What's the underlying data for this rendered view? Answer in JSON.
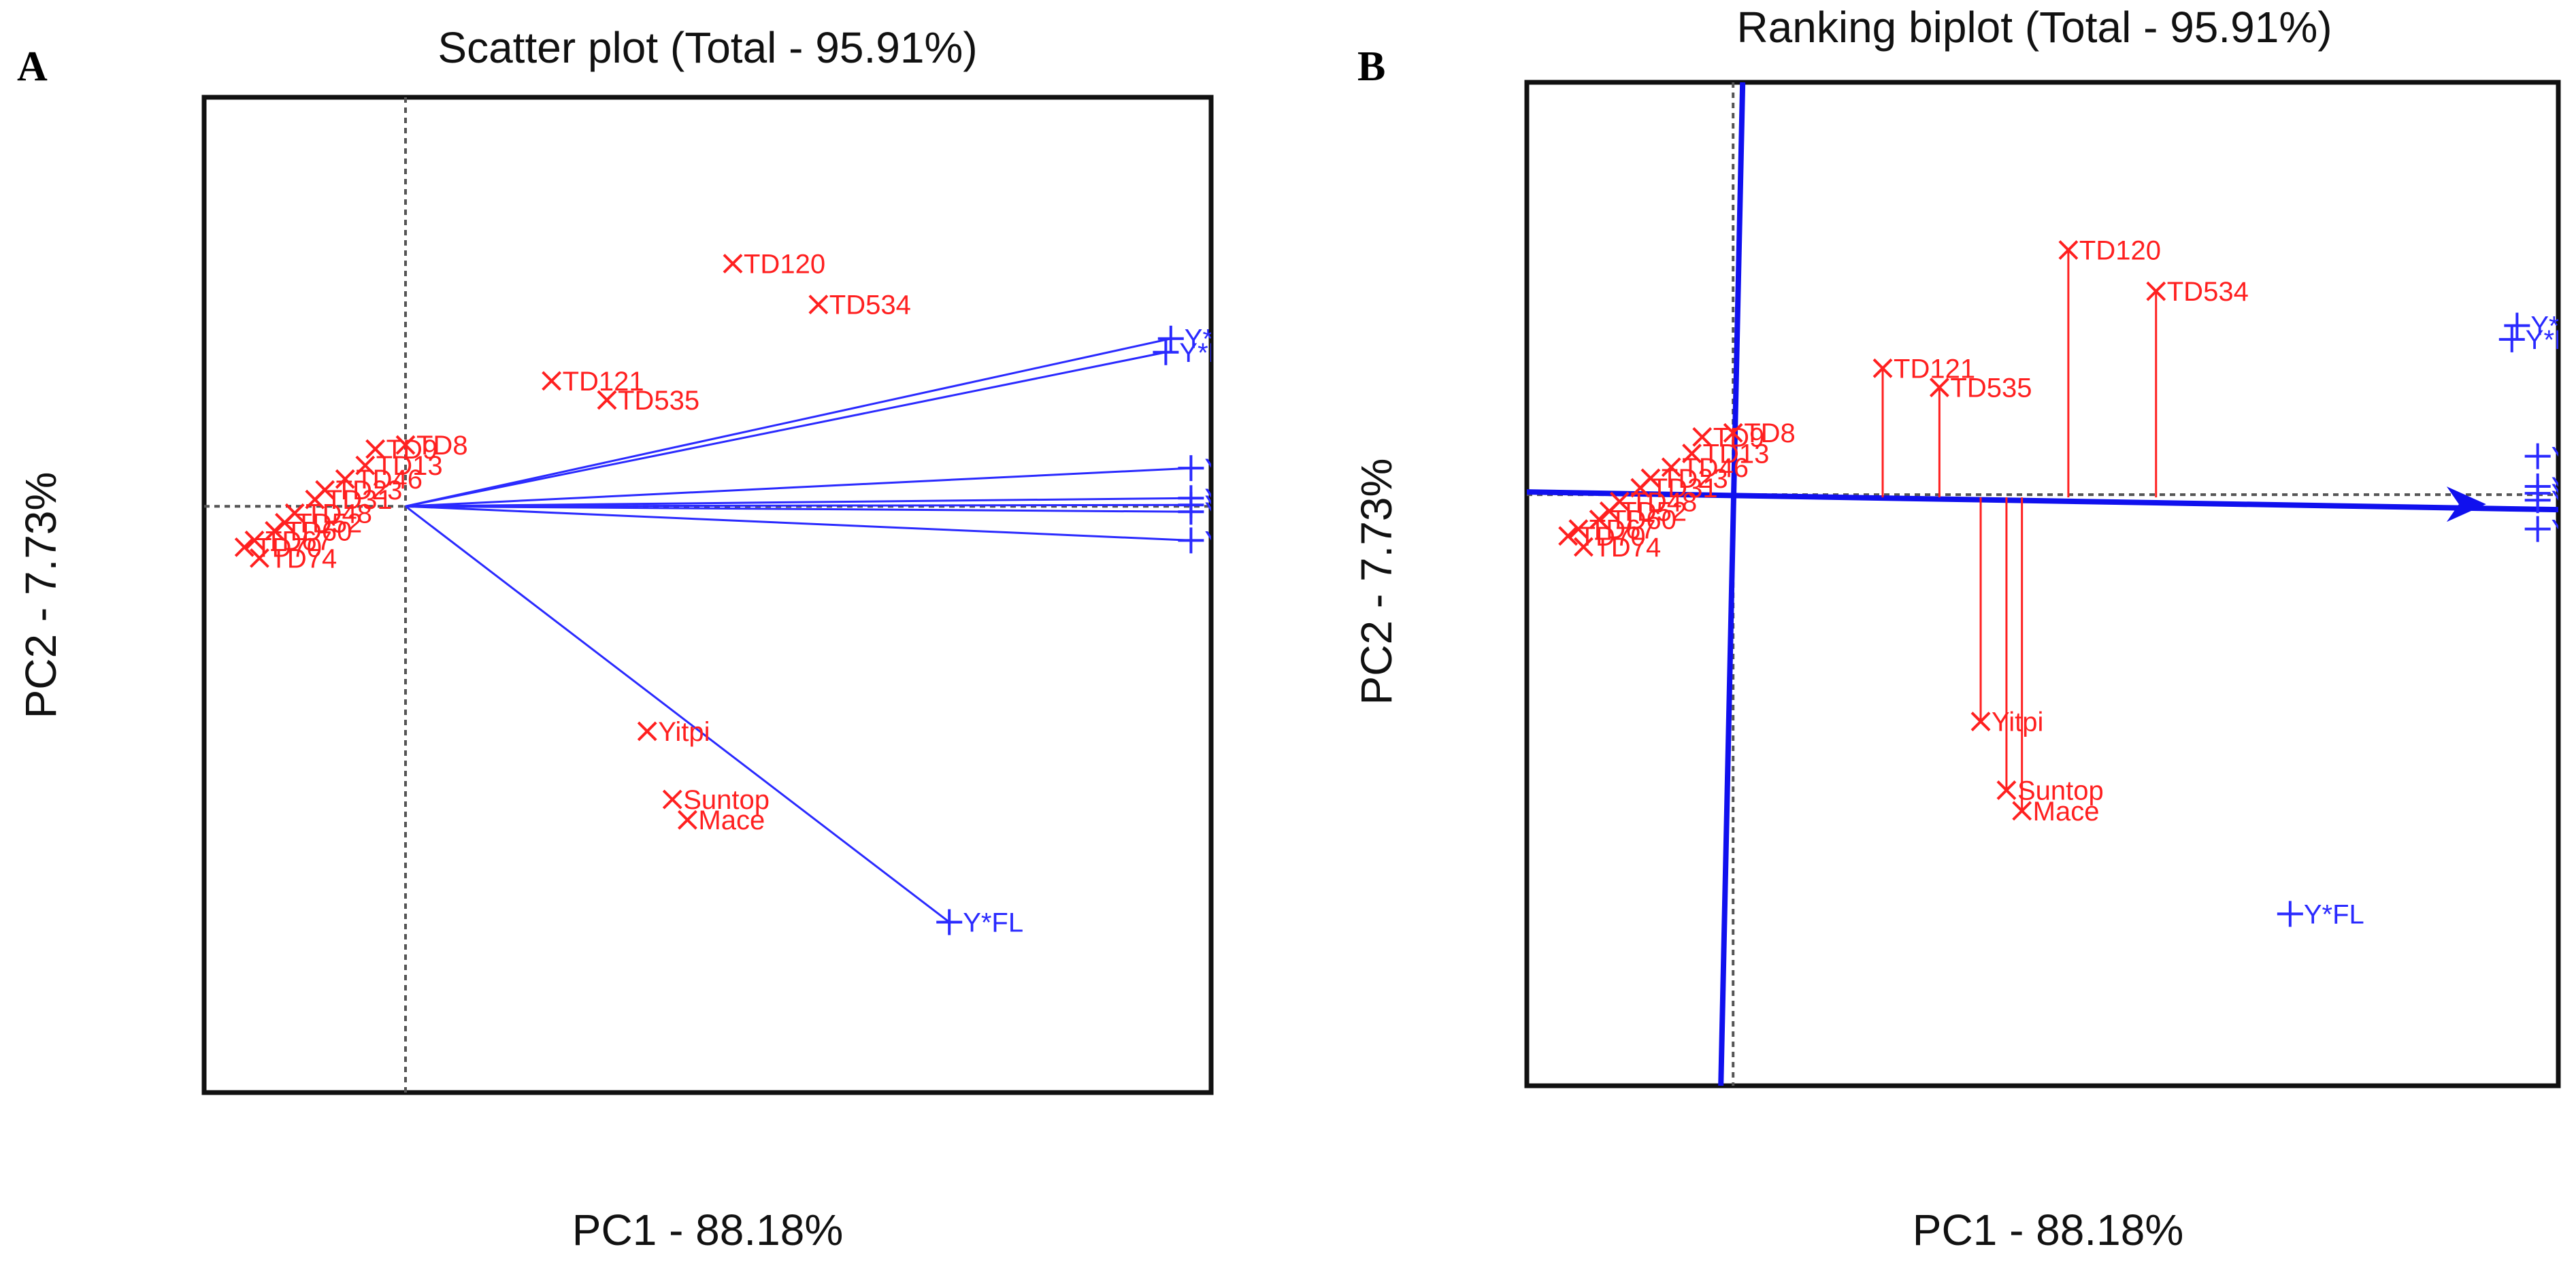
{
  "figure": {
    "panels": [
      "A",
      "B"
    ]
  },
  "chart_data": [
    {
      "panel": "A",
      "type": "scatter",
      "subtype": "GGE biplot - scatter (which-won-where) view",
      "title": "Scatter plot (Total - 95.91%)",
      "xlabel": "PC1 - 88.18%",
      "ylabel": "PC2 - 7.73%",
      "xlim": [
        -2.0,
        8.0
      ],
      "ylim": [
        -4.3,
        3.0
      ],
      "origin_lines": true,
      "genotypes": [
        {
          "label": "TD120",
          "x": 3.25,
          "y": 1.78
        },
        {
          "label": "TD534",
          "x": 4.1,
          "y": 1.48
        },
        {
          "label": "TD121",
          "x": 1.45,
          "y": 0.92
        },
        {
          "label": "TD535",
          "x": 2.0,
          "y": 0.78
        },
        {
          "label": "Yitpi",
          "x": 2.4,
          "y": -1.65
        },
        {
          "label": "Suntop",
          "x": 2.65,
          "y": -2.15
        },
        {
          "label": "Mace",
          "x": 2.8,
          "y": -2.3
        },
        {
          "label": "TD74",
          "x": -1.45,
          "y": -0.38
        },
        {
          "label": "TD8",
          "x": 0.0,
          "y": 0.45
        },
        {
          "label": "TD9",
          "x": -0.3,
          "y": 0.42
        },
        {
          "label": "TD13",
          "x": -0.4,
          "y": 0.3
        },
        {
          "label": "TD46",
          "x": -0.6,
          "y": 0.2
        },
        {
          "label": "TD23",
          "x": -0.8,
          "y": 0.12
        },
        {
          "label": "TD31",
          "x": -0.9,
          "y": 0.05
        },
        {
          "label": "TD48",
          "x": -1.1,
          "y": -0.05
        },
        {
          "label": "TD52",
          "x": -1.2,
          "y": -0.12
        },
        {
          "label": "TD60",
          "x": -1.3,
          "y": -0.18
        },
        {
          "label": "TD67",
          "x": -1.5,
          "y": -0.25
        },
        {
          "label": "TD70",
          "x": -1.6,
          "y": -0.3
        }
      ],
      "environments": [
        {
          "label": "Y*B",
          "x": 7.6,
          "y": 1.23
        },
        {
          "label": "Y*E",
          "x": 7.55,
          "y": 1.13
        },
        {
          "label": "Y*S",
          "x": 7.8,
          "y": 0.28
        },
        {
          "label": "Y*SW",
          "x": 7.8,
          "y": 0.06
        },
        {
          "label": "Y*RW",
          "x": 7.8,
          "y": 0.01
        },
        {
          "label": "Y*TK",
          "x": 7.8,
          "y": -0.04
        },
        {
          "label": "Y*SA",
          "x": 7.8,
          "y": -0.25
        },
        {
          "label": "Y*FL",
          "x": 5.4,
          "y": -3.05
        }
      ]
    },
    {
      "panel": "B",
      "type": "scatter",
      "subtype": "GGE biplot - ranking (average environment coordination) view",
      "title": "Ranking biplot (Total - 95.91%)",
      "xlabel": "PC1 - 88.18%",
      "ylabel": "PC2 - 7.73%",
      "xlim": [
        -2.0,
        8.0
      ],
      "ylim": [
        -4.3,
        3.0
      ],
      "origin_lines": true,
      "genotypes": [
        {
          "label": "TD120",
          "x": 3.25,
          "y": 1.78
        },
        {
          "label": "TD534",
          "x": 4.1,
          "y": 1.48
        },
        {
          "label": "TD121",
          "x": 1.45,
          "y": 0.92
        },
        {
          "label": "TD535",
          "x": 2.0,
          "y": 0.78
        },
        {
          "label": "Yitpi",
          "x": 2.4,
          "y": -1.65
        },
        {
          "label": "Suntop",
          "x": 2.65,
          "y": -2.15
        },
        {
          "label": "Mace",
          "x": 2.8,
          "y": -2.3
        },
        {
          "label": "TD74",
          "x": -1.45,
          "y": -0.38
        },
        {
          "label": "TD8",
          "x": 0.0,
          "y": 0.45
        },
        {
          "label": "TD9",
          "x": -0.3,
          "y": 0.42
        },
        {
          "label": "TD13",
          "x": -0.4,
          "y": 0.3
        },
        {
          "label": "TD46",
          "x": -0.6,
          "y": 0.2
        },
        {
          "label": "TD23",
          "x": -0.8,
          "y": 0.12
        },
        {
          "label": "TD31",
          "x": -0.9,
          "y": 0.05
        },
        {
          "label": "TD48",
          "x": -1.1,
          "y": -0.05
        },
        {
          "label": "TD52",
          "x": -1.2,
          "y": -0.12
        },
        {
          "label": "TD60",
          "x": -1.3,
          "y": -0.18
        },
        {
          "label": "TD67",
          "x": -1.5,
          "y": -0.25
        },
        {
          "label": "TD70",
          "x": -1.6,
          "y": -0.3
        }
      ],
      "environments": [
        {
          "label": "Y*B",
          "x": 7.6,
          "y": 1.23
        },
        {
          "label": "Y*E",
          "x": 7.55,
          "y": 1.13
        },
        {
          "label": "Y*S",
          "x": 7.8,
          "y": 0.28
        },
        {
          "label": "Y*SW",
          "x": 7.8,
          "y": 0.06
        },
        {
          "label": "Y*RW",
          "x": 7.8,
          "y": 0.01
        },
        {
          "label": "Y*TK",
          "x": 7.8,
          "y": -0.04
        },
        {
          "label": "Y*SA",
          "x": 7.8,
          "y": -0.25
        },
        {
          "label": "Y*FL",
          "x": 5.4,
          "y": -3.05
        }
      ],
      "aec_abscissa_end": [
        8.0,
        0.0
      ],
      "aec_arrow_tip": [
        7.3,
        0.0
      ]
    }
  ],
  "colors": {
    "genotype": "#ff2020",
    "environment": "#2a2aff",
    "frame": "#111111",
    "reference_line": "#555555"
  }
}
